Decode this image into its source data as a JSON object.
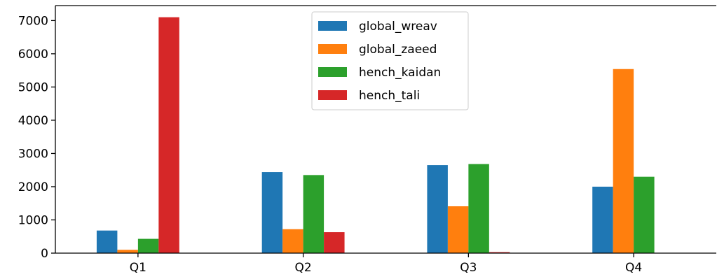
{
  "chart_data": {
    "type": "bar",
    "categories": [
      "Q1",
      "Q2",
      "Q3",
      "Q4"
    ],
    "series": [
      {
        "name": "global_wreav",
        "color": "#1f77b4",
        "values": [
          680,
          2440,
          2650,
          2000
        ]
      },
      {
        "name": "global_zaeed",
        "color": "#ff7f0e",
        "values": [
          100,
          720,
          1410,
          5540
        ]
      },
      {
        "name": "hench_kaidan",
        "color": "#2ca02c",
        "values": [
          430,
          2350,
          2680,
          2300
        ]
      },
      {
        "name": "hench_tali",
        "color": "#d62728",
        "values": [
          7100,
          630,
          30,
          0
        ]
      }
    ],
    "title": "",
    "xlabel": "",
    "ylabel": "",
    "ylim": [
      0,
      7450
    ],
    "yticks": [
      0,
      1000,
      2000,
      3000,
      4000,
      5000,
      6000,
      7000
    ],
    "grid": false,
    "legend_position": "top-center"
  }
}
